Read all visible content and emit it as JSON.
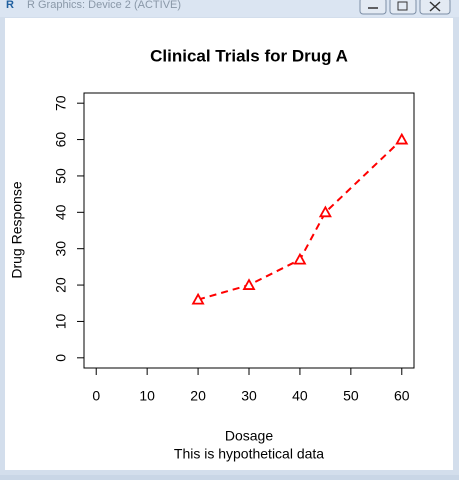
{
  "window": {
    "title": "R Graphics: Device 2 (ACTIVE)"
  },
  "chart_data": {
    "type": "line",
    "title": "Clinical Trials for Drug A",
    "subtitle": "This is hypothetical data",
    "x_label": "Dosage",
    "y_label": "Drug Response",
    "x": [
      20,
      30,
      40,
      45,
      60
    ],
    "series": [
      {
        "color": "#ff0000",
        "values": [
          16,
          20,
          27,
          40,
          60
        ]
      }
    ],
    "xlim": [
      -2.4,
      62.4
    ],
    "ylim": [
      -2.8,
      72.8
    ],
    "xticks": [
      0,
      10,
      20,
      30,
      40,
      50,
      60
    ],
    "yticks": [
      0,
      10,
      20,
      30,
      40,
      50,
      60,
      70
    ]
  }
}
